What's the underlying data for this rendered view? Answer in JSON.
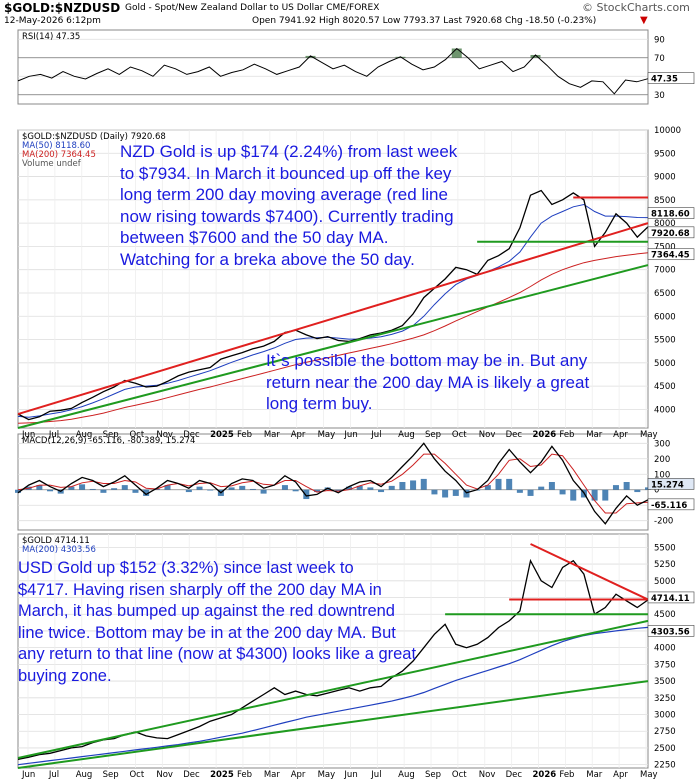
{
  "header": {
    "symbol": "$GOLD:$NZDUSD",
    "description": "Gold - Spot/New Zealand Dollar to US Dollar  CME/FOREX",
    "brand": "© StockCharts.com",
    "date": "12-May-2026 6:12pm",
    "ohlc": "Open 7941.92  High 8020.57  Low 7793.37  Last 7920.68  Chg -18.50 (-0.23%)",
    "down_arrow": "▼"
  },
  "colors": {
    "price": "#000000",
    "ma50": "#1f3fbf",
    "ma200": "#cc2222",
    "trend_red": "#e0201f",
    "trend_green": "#1f9a1f",
    "macd_signal": "#cc2222",
    "hist": "#2f6fa8",
    "annotation": "#1a1adf",
    "rsi_fill": "#4a7a4a"
  },
  "annotations": {
    "nzd_text": [
      "NZD Gold is up $174 (2.24%) from last week",
      "to $7934. In March it bounced up off the key",
      "long term 200 day moving average (red line",
      "now rising towards $7400). Currently trading",
      "between $7600 and the 50 day MA.",
      "Watching for a breka above the 50 day."
    ],
    "nzd_bottom": [
      "It`s possible the bottom may be in. But any",
      "return near the 200 day MA is likely a great",
      "long term buy."
    ],
    "usd_text": [
      "USD Gold up $152 (3.32%) since last week to",
      "$4717. Having risen sharply off the 200 day MA in",
      "March, it has bumped up against the red downtrend",
      "line twice. Bottom may be in at the 200 day MA. But",
      "any return to that line (now at $4300) looks like a great",
      "buying zone."
    ]
  },
  "chart_data": [
    {
      "type": "line",
      "panel": "rsi",
      "legend": [
        "RSI(14) 47.35"
      ],
      "ylim": [
        20,
        100
      ],
      "ticks": [
        "90",
        "70",
        "50",
        "30"
      ],
      "last_label": "47.35",
      "series": [
        {
          "name": "RSI(14)",
          "values": [
            45,
            50,
            52,
            48,
            55,
            50,
            47,
            53,
            58,
            52,
            60,
            56,
            50,
            62,
            58,
            52,
            55,
            60,
            50,
            54,
            57,
            63,
            58,
            52,
            56,
            60,
            72,
            65,
            58,
            62,
            55,
            50,
            60,
            66,
            71,
            63,
            57,
            60,
            68,
            80,
            70,
            58,
            62,
            66,
            55,
            60,
            73,
            62,
            50,
            42,
            38,
            45,
            44,
            31,
            46,
            44,
            47.35
          ]
        }
      ]
    },
    {
      "type": "line",
      "panel": "nzd",
      "legend": [
        "$GOLD:$NZDUSD (Daily) 7920.68",
        "MA(50) 8118.60",
        "MA(200) 7364.45",
        "Volume undef"
      ],
      "ylim": [
        3600,
        10000
      ],
      "ticks": [
        "10000",
        "9500",
        "9000",
        "8500",
        "8000",
        "7500",
        "7000",
        "6500",
        "6000",
        "5500",
        "5000",
        "4500",
        "4000"
      ],
      "label_boxes": [
        "8118.60",
        "7920.68",
        "7364.45"
      ],
      "x_labels": [
        "Jun",
        "Jul",
        "Aug",
        "Sep",
        "Oct",
        "Nov",
        "Dec",
        "2025",
        "Feb",
        "Mar",
        "Apr",
        "May",
        "Jun",
        "Jul",
        "Aug",
        "Sep",
        "Oct",
        "Nov",
        "Dec",
        "2026",
        "Feb",
        "Mar",
        "Apr",
        "May"
      ],
      "series": [
        {
          "name": "$GOLD:$NZDUSD",
          "values": [
            3900,
            3780,
            3840,
            3960,
            3980,
            4020,
            4150,
            4260,
            4380,
            4480,
            4620,
            4560,
            4480,
            4500,
            4600,
            4720,
            4800,
            4850,
            4900,
            5080,
            5150,
            5220,
            5300,
            5360,
            5460,
            5650,
            5700,
            5600,
            5520,
            5560,
            5480,
            5460,
            5520,
            5600,
            5640,
            5700,
            5800,
            6050,
            6400,
            6600,
            6800,
            7050,
            7000,
            6900,
            7200,
            7300,
            7450,
            7900,
            8600,
            8700,
            8400,
            8500,
            8650,
            8500,
            7500,
            7800,
            8200,
            8000,
            7700,
            7920.68
          ]
        },
        {
          "name": "MA(50)",
          "values": [
            3850,
            3830,
            3860,
            3900,
            3940,
            3990,
            4060,
            4140,
            4230,
            4330,
            4430,
            4480,
            4500,
            4520,
            4560,
            4620,
            4690,
            4760,
            4830,
            4920,
            5010,
            5090,
            5170,
            5240,
            5320,
            5420,
            5500,
            5530,
            5540,
            5550,
            5530,
            5510,
            5510,
            5530,
            5560,
            5610,
            5680,
            5800,
            6000,
            6250,
            6480,
            6680,
            6800,
            6880,
            6960,
            7060,
            7180,
            7380,
            7700,
            8000,
            8150,
            8250,
            8350,
            8400,
            8250,
            8150,
            8150,
            8140,
            8120,
            8118.6
          ]
        },
        {
          "name": "MA(200)",
          "values": [
            3700,
            3710,
            3720,
            3740,
            3760,
            3790,
            3830,
            3870,
            3920,
            3980,
            4040,
            4090,
            4140,
            4190,
            4250,
            4310,
            4370,
            4430,
            4480,
            4540,
            4600,
            4660,
            4720,
            4780,
            4840,
            4900,
            4960,
            5010,
            5060,
            5110,
            5160,
            5210,
            5260,
            5310,
            5360,
            5410,
            5470,
            5530,
            5600,
            5690,
            5790,
            5900,
            6000,
            6100,
            6200,
            6300,
            6400,
            6510,
            6640,
            6780,
            6900,
            7000,
            7080,
            7150,
            7200,
            7240,
            7280,
            7310,
            7340,
            7364.45
          ]
        }
      ],
      "trendlines": {
        "red_lower": [
          [
            0,
            3900
          ],
          [
            59,
            8000
          ]
        ],
        "green_lower": [
          [
            0,
            3600
          ],
          [
            59,
            7100
          ]
        ],
        "red_h": [
          [
            52,
            8550
          ],
          [
            59,
            8550
          ]
        ],
        "green_h": [
          [
            43,
            7600
          ],
          [
            59,
            7600
          ]
        ]
      }
    },
    {
      "type": "line",
      "panel": "macd",
      "legend": [
        "MACD(12,26,9) -65.116, -80.389, 15.274"
      ],
      "ylim": [
        -260,
        360
      ],
      "ticks": [
        "300",
        "200",
        "100",
        "0",
        "-100",
        "-200"
      ],
      "label_boxes": [
        "15.274",
        "-65.116"
      ],
      "series": [
        {
          "name": "MACD",
          "values": [
            -20,
            30,
            60,
            20,
            -10,
            40,
            80,
            60,
            20,
            50,
            90,
            30,
            -30,
            10,
            60,
            40,
            10,
            60,
            40,
            -20,
            40,
            70,
            60,
            10,
            30,
            90,
            50,
            -40,
            -30,
            10,
            -20,
            20,
            50,
            60,
            20,
            80,
            150,
            220,
            300,
            200,
            120,
            60,
            -20,
            0,
            60,
            170,
            260,
            180,
            110,
            180,
            280,
            190,
            60,
            -20,
            -140,
            -220,
            -120,
            -40,
            -100,
            -65.116
          ]
        },
        {
          "name": "Signal",
          "values": [
            0,
            10,
            30,
            30,
            15,
            20,
            45,
            55,
            40,
            40,
            60,
            50,
            10,
            5,
            30,
            40,
            25,
            40,
            45,
            20,
            25,
            45,
            55,
            35,
            30,
            60,
            60,
            20,
            -15,
            -5,
            -10,
            0,
            25,
            45,
            35,
            55,
            100,
            160,
            230,
            230,
            170,
            100,
            30,
            5,
            30,
            100,
            190,
            200,
            150,
            160,
            230,
            220,
            130,
            30,
            -70,
            -150,
            -150,
            -90,
            -85,
            -80.389
          ]
        },
        {
          "name": "Histogram",
          "values": [
            -20,
            20,
            30,
            -10,
            -25,
            20,
            35,
            5,
            -20,
            10,
            30,
            -20,
            -40,
            5,
            30,
            0,
            -15,
            20,
            -5,
            -40,
            15,
            25,
            5,
            -25,
            0,
            30,
            -10,
            -60,
            -15,
            15,
            -10,
            20,
            25,
            15,
            -15,
            25,
            50,
            60,
            70,
            -30,
            -50,
            -40,
            -50,
            -5,
            30,
            70,
            70,
            -20,
            -40,
            20,
            50,
            -30,
            -70,
            -50,
            -70,
            -70,
            30,
            50,
            -15,
            15.274
          ]
        }
      ]
    },
    {
      "type": "line",
      "panel": "usd",
      "legend": [
        "$GOLD 4714.11",
        "MA(200) 4303.56"
      ],
      "ylim": [
        2200,
        5700
      ],
      "ticks": [
        "5500",
        "5250",
        "5000",
        "4750",
        "4500",
        "4250",
        "4000",
        "3750",
        "3500",
        "3250",
        "3000",
        "2750",
        "2500",
        "2250"
      ],
      "label_boxes": [
        "4714.11",
        "4303.56"
      ],
      "x_labels": [
        "Jun",
        "Jul",
        "Aug",
        "Sep",
        "Oct",
        "Nov",
        "Dec",
        "2025",
        "Feb",
        "Mar",
        "Apr",
        "May",
        "Jun",
        "Jul",
        "Aug",
        "Sep",
        "Oct",
        "Nov",
        "Dec",
        "2026",
        "Feb",
        "Mar",
        "Apr",
        "May"
      ],
      "series": [
        {
          "name": "$GOLD",
          "values": [
            2330,
            2360,
            2400,
            2420,
            2460,
            2500,
            2520,
            2580,
            2620,
            2640,
            2700,
            2740,
            2680,
            2650,
            2640,
            2700,
            2760,
            2820,
            2900,
            2950,
            3000,
            3100,
            3200,
            3300,
            3400,
            3300,
            3350,
            3300,
            3280,
            3320,
            3360,
            3400,
            3350,
            3400,
            3420,
            3550,
            3650,
            3800,
            4000,
            4200,
            4350,
            4050,
            4000,
            4050,
            4150,
            4300,
            4400,
            4550,
            5300,
            5000,
            4900,
            5200,
            5300,
            5100,
            4500,
            4600,
            4800,
            4700,
            4600,
            4714.11
          ]
        },
        {
          "name": "MA(200)",
          "values": [
            2250,
            2270,
            2290,
            2310,
            2330,
            2350,
            2370,
            2390,
            2410,
            2430,
            2450,
            2470,
            2490,
            2510,
            2530,
            2550,
            2575,
            2600,
            2630,
            2660,
            2690,
            2720,
            2760,
            2800,
            2840,
            2880,
            2920,
            2960,
            2990,
            3020,
            3050,
            3080,
            3110,
            3140,
            3170,
            3200,
            3240,
            3280,
            3330,
            3390,
            3450,
            3510,
            3560,
            3610,
            3660,
            3710,
            3760,
            3820,
            3890,
            3960,
            4030,
            4090,
            4140,
            4180,
            4210,
            4230,
            4250,
            4270,
            4290,
            4303.56
          ]
        }
      ],
      "trendlines": {
        "green_upper": [
          [
            0,
            2350
          ],
          [
            59,
            4400
          ]
        ],
        "green_lower": [
          [
            0,
            2200
          ],
          [
            59,
            3500
          ]
        ],
        "red_down": [
          [
            48,
            5550
          ],
          [
            59,
            4720
          ]
        ],
        "red_h": [
          [
            46,
            4720
          ],
          [
            59,
            4720
          ]
        ],
        "green_h": [
          [
            40,
            4500
          ],
          [
            59,
            4500
          ]
        ]
      }
    }
  ]
}
